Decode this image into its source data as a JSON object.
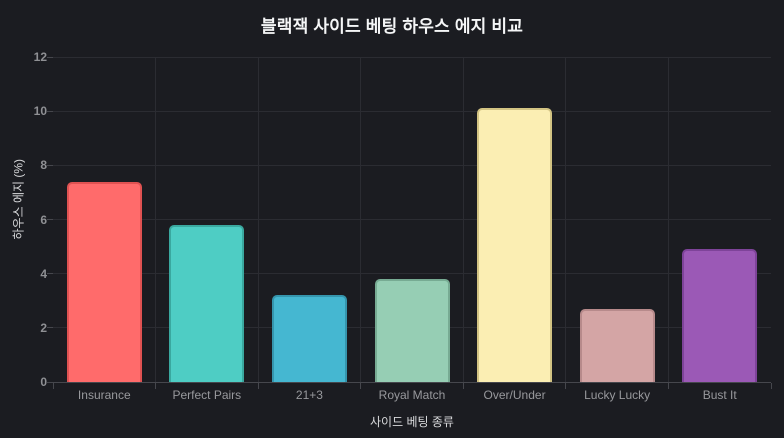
{
  "title": "블랙잭 사이드 베팅 하우스 에지 비교",
  "chart_data": {
    "type": "bar",
    "title": "블랙잭 사이드 베팅 하우스 에지 비교",
    "categories": [
      "Insurance",
      "Perfect Pairs",
      "21+3",
      "Royal Match",
      "Over/Under",
      "Lucky Lucky",
      "Bust It"
    ],
    "values": [
      7.4,
      5.8,
      3.2,
      3.8,
      10.1,
      2.7,
      4.9
    ],
    "xlabel": "사이드 베팅 종류",
    "ylabel": "하우스 에지 (%)",
    "ylim": [
      0,
      12
    ],
    "yticks": [
      0,
      2,
      4,
      6,
      8,
      10,
      12
    ],
    "grid": true,
    "legend": "none",
    "bar_colors": [
      "#ff6b6b",
      "#4ecdc4",
      "#45b7d1",
      "#96ceb4",
      "#fbeeb3",
      "#d4a5a5",
      "#9b59b6"
    ],
    "bar_border_colors": [
      "#e05252",
      "#3aa89f",
      "#3595ad",
      "#77ab93",
      "#d3c483",
      "#b78a8b",
      "#7e4399"
    ],
    "theme": {
      "background": "#1b1c21",
      "gridline": "#2b2c32",
      "axis_line": "#46474d",
      "tick_label": "#98999d",
      "axis_title": "#d8d9db",
      "title_color": "#f5f6f7"
    }
  }
}
